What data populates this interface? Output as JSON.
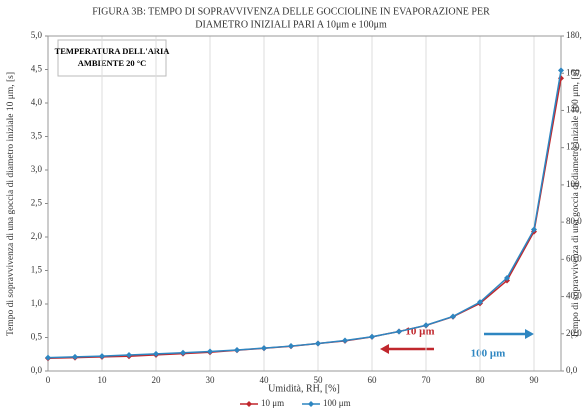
{
  "chart_data": {
    "type": "line",
    "title": [
      "FIGURA 3B: TEMPO DI SOPRAVVIVENZA DELLE GOCCIOLINE IN EVAPORAZIONE PER",
      "DIAMETRO INIZIALI PARI A 10μm e 100μm"
    ],
    "x_label": "Umidità, RH, [%]",
    "y_label": "Tempo di sopravvivenza di una goccia di diametro iniziale 10 μm, [s]",
    "y2_label": "Tempo di sopravvivenza di una goccia di diametro iniziale 100 μm, [s]",
    "annotations": [
      "TEMPERATURA DELL'ARIA",
      "AMBIENTE 20 °C",
      "10 μm",
      "100 μm"
    ],
    "x": [
      0,
      5,
      10,
      15,
      20,
      25,
      30,
      35,
      40,
      45,
      50,
      55,
      60,
      65,
      70,
      75,
      80,
      85,
      90,
      95
    ],
    "series": [
      {
        "name": "10 μm",
        "color": "#c0272d",
        "values": [
          0.19,
          0.2,
          0.21,
          0.22,
          0.24,
          0.26,
          0.28,
          0.31,
          0.34,
          0.37,
          0.41,
          0.45,
          0.51,
          0.59,
          0.68,
          0.81,
          1.01,
          1.35,
          2.08,
          4.37
        ]
      },
      {
        "name": "100 μm",
        "color": "#2e86c1",
        "axis": "y2",
        "values": [
          7.2,
          7.6,
          8.0,
          8.6,
          9.2,
          9.8,
          10.5,
          11.3,
          12.3,
          13.4,
          14.8,
          16.4,
          18.4,
          21.2,
          24.6,
          29.3,
          37.0,
          50.0,
          76.0,
          161.5
        ]
      }
    ],
    "xlim": [
      0,
      95
    ],
    "xticks": [
      0,
      10,
      20,
      30,
      40,
      50,
      60,
      70,
      80,
      90
    ],
    "ylim": [
      0,
      5
    ],
    "yticks": [
      {
        "value": 0,
        "label": "0,0"
      },
      {
        "value": 0.5,
        "label": "0,5"
      },
      {
        "value": 1,
        "label": "1,0"
      },
      {
        "value": 1.5,
        "label": "1,5"
      },
      {
        "value": 2,
        "label": "2,0"
      },
      {
        "value": 2.5,
        "label": "2,5"
      },
      {
        "value": 3,
        "label": "3,0"
      },
      {
        "value": 3.5,
        "label": "3,5"
      },
      {
        "value": 4,
        "label": "4,0"
      },
      {
        "value": 4.5,
        "label": "4,5"
      },
      {
        "value": 5,
        "label": "5,0"
      }
    ],
    "y2lim": [
      0,
      180
    ],
    "y2ticks": [
      {
        "value": 0,
        "label": "0,0"
      },
      {
        "value": 20,
        "label": "20,0"
      },
      {
        "value": 40,
        "label": "40,0"
      },
      {
        "value": 60,
        "label": "60,0"
      },
      {
        "value": 80,
        "label": "80,0"
      },
      {
        "value": 100,
        "label": "100,0"
      },
      {
        "value": 120,
        "label": "120,0"
      },
      {
        "value": 140,
        "label": "140,0"
      },
      {
        "value": 160,
        "label": "160,0"
      },
      {
        "value": 180,
        "label": "180,0"
      }
    ],
    "grid": true
  }
}
